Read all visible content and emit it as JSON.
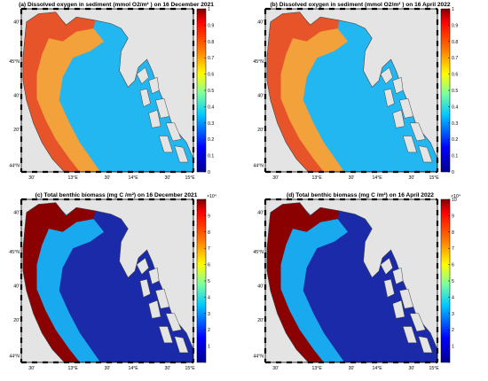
{
  "figure": {
    "panels": [
      {
        "id": "a",
        "variable": "oxygen",
        "title": "(a) Dissolved oxygen in sediment (mmol O2/m² ) on 16 December 2021",
        "colorbar": {
          "ticks": [
            "1",
            "0.9",
            "0.8",
            "0.7",
            "0.6",
            "0.5",
            "0.4",
            "0.3",
            "0.2",
            "0.1",
            "0"
          ],
          "multiplier": ""
        }
      },
      {
        "id": "b",
        "variable": "oxygen",
        "title": "(b) Dissolved oxygen in sediment (mmol O2/m² ) on 16 April 2022",
        "colorbar": {
          "ticks": [
            "1",
            "0.9",
            "0.8",
            "0.7",
            "0.6",
            "0.5",
            "0.4",
            "0.3",
            "0.2",
            "0.1",
            "0"
          ],
          "multiplier": ""
        }
      },
      {
        "id": "c",
        "variable": "biomass",
        "title": "(c) Total benthic biomass (mg C /m²) on 16 December 2021",
        "colorbar": {
          "ticks": [
            "",
            "9",
            "8",
            "7",
            "6",
            "5",
            "4",
            "3",
            "2",
            "1",
            ""
          ],
          "multiplier": "×10⁴"
        }
      },
      {
        "id": "d",
        "variable": "biomass",
        "title": "(d) Total benthic biomass (mg C /m²) on 16 April 2022",
        "colorbar": {
          "ticks": [
            "10",
            "9",
            "8",
            "7",
            "6",
            "5",
            "4",
            "3",
            "2",
            "1",
            ""
          ],
          "multiplier": "×10⁴"
        }
      }
    ],
    "lat_labels": [
      "40'",
      "45°N",
      "40'",
      "20'",
      "44°N"
    ],
    "lon_labels": [
      "30'",
      "13°E",
      "30'",
      "14°E",
      "30'",
      "15°E"
    ]
  },
  "colors": {
    "land": "#e4e4e4",
    "coast": "#444444",
    "oxygen_high": "#e8542a",
    "oxygen_mid": "#f3a13a",
    "oxygen_low": "#22b7f0",
    "biomass_high": "#8b0000",
    "biomass_mid": "#18a9ee",
    "biomass_low": "#1a2aa8"
  }
}
